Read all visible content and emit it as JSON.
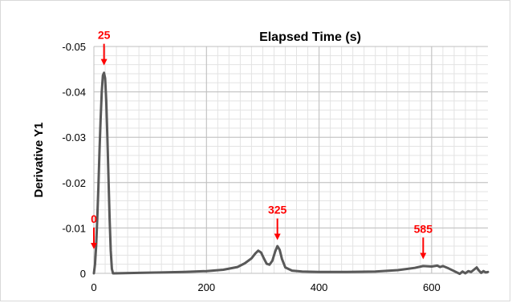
{
  "chart_data": {
    "type": "line",
    "title": "Elapsed Time (s)",
    "xlabel": "",
    "ylabel": "Derivative Y1",
    "xlim": [
      0,
      700
    ],
    "ylim": [
      0,
      -0.05
    ],
    "y_axis_reversed": true,
    "x_ticks": [
      0,
      200,
      400,
      600
    ],
    "x_tick_labels": [
      "0",
      "200",
      "400",
      "600"
    ],
    "y_ticks": [
      -0.05,
      -0.04,
      -0.03,
      -0.02,
      -0.01,
      0
    ],
    "y_tick_labels": [
      "-0.05",
      "-0.04",
      "-0.03",
      "-0.02",
      "-0.01",
      "0"
    ],
    "grid": true,
    "line_color": "#595959",
    "annotation_color": "#ff0000",
    "series": [
      {
        "x": [
          0,
          2,
          4,
          6,
          8,
          10,
          12,
          14,
          16,
          18,
          20,
          22,
          24,
          26,
          28,
          30,
          32,
          34,
          36,
          80,
          120,
          160,
          200,
          230,
          255,
          268,
          280,
          287,
          292,
          297,
          302,
          307,
          312,
          317,
          322,
          326,
          330,
          334,
          340,
          352,
          370,
          400,
          450,
          500,
          540,
          570,
          585,
          600,
          610,
          615,
          620,
          630,
          640,
          650,
          655,
          660,
          665,
          670,
          675,
          680,
          684,
          688,
          692,
          696,
          700
        ],
        "y": [
          0,
          -0.002,
          -0.006,
          -0.012,
          -0.019,
          -0.027,
          -0.034,
          -0.04,
          -0.0436,
          -0.0442,
          -0.043,
          -0.038,
          -0.03,
          -0.021,
          -0.012,
          -0.005,
          -0.001,
          0,
          0,
          -0.0001,
          -0.0002,
          -0.0003,
          -0.0005,
          -0.0008,
          -0.0014,
          -0.0022,
          -0.0033,
          -0.0044,
          -0.005,
          -0.0046,
          -0.0033,
          -0.0021,
          -0.0019,
          -0.0028,
          -0.0048,
          -0.006,
          -0.0052,
          -0.0032,
          -0.0013,
          -0.0006,
          -0.0004,
          -0.0003,
          -0.0003,
          -0.0004,
          -0.0007,
          -0.0012,
          -0.0016,
          -0.0015,
          -0.0017,
          -0.0014,
          -0.0016,
          -0.0011,
          -0.0005,
          0.0001,
          -0.0004,
          0,
          -0.0005,
          -0.0003,
          -0.0008,
          -0.0013,
          -0.0006,
          -0.0001,
          -0.0005,
          -0.0002,
          -0.0003
        ]
      }
    ],
    "annotations": [
      {
        "label": "25",
        "x": 18,
        "y": -0.046
      },
      {
        "label": "0",
        "x": 0,
        "y": -0.0055
      },
      {
        "label": "325",
        "x": 326,
        "y": -0.0075
      },
      {
        "label": "585",
        "x": 585,
        "y": -0.0033
      }
    ]
  }
}
